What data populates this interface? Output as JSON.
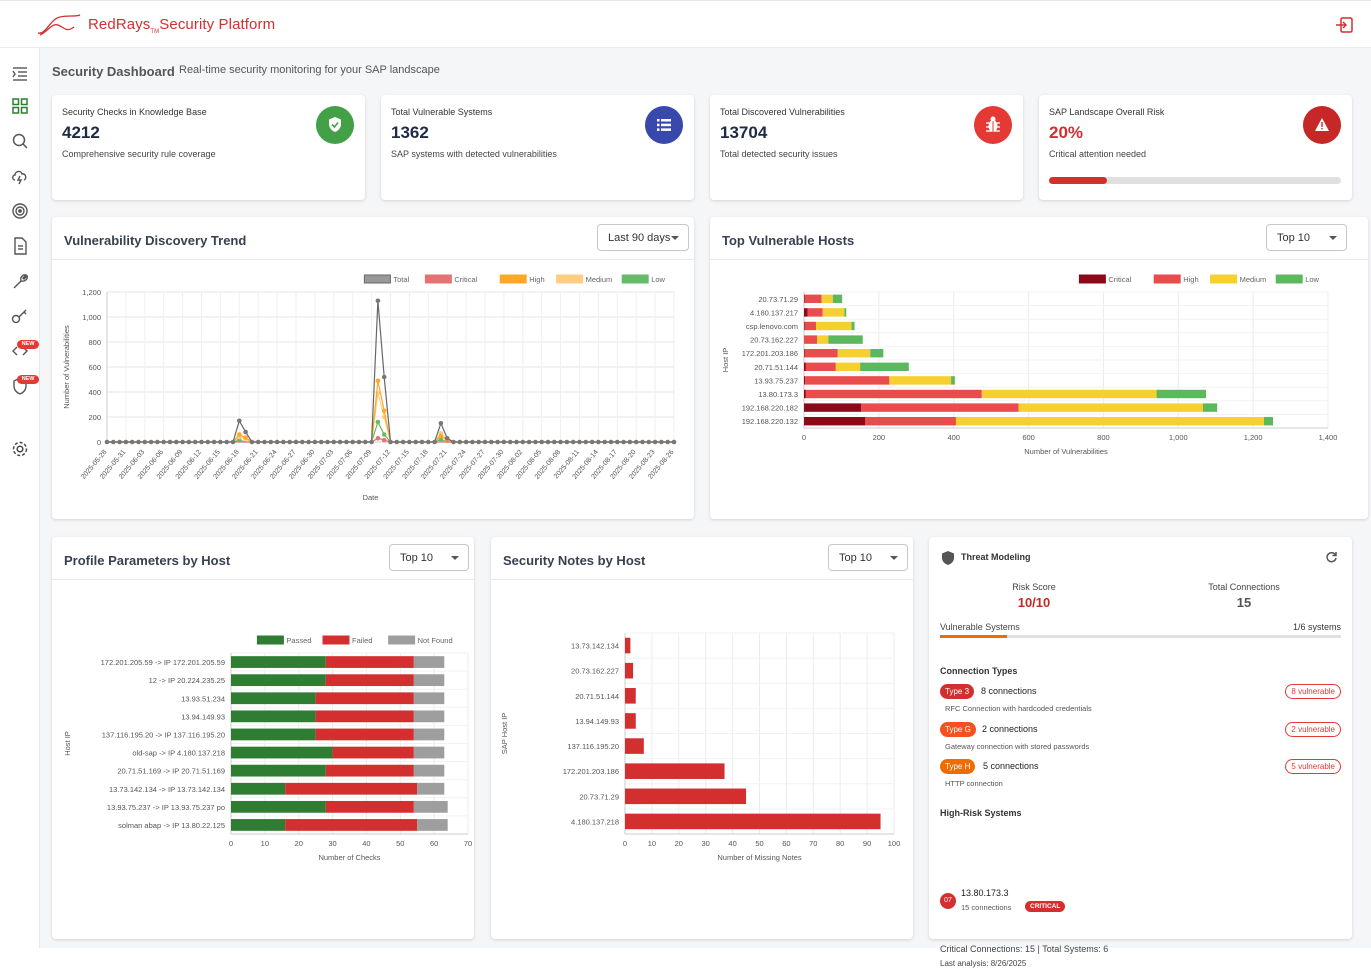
{
  "app": {
    "brand": "RedRays",
    "tm": "TM",
    "brand_suffix": "Security Platform"
  },
  "sidebar": {
    "new_badge": "NEW"
  },
  "page": {
    "title": "Security Dashboard",
    "subtitle": "Real-time security monitoring for your SAP landscape"
  },
  "stats": [
    {
      "label": "Security Checks in Knowledge Base",
      "value": "4212",
      "desc": "Comprehensive security rule coverage",
      "color": "#43a047",
      "icon": "shield-check-icon"
    },
    {
      "label": "Total Vulnerable Systems",
      "value": "1362",
      "desc": "SAP systems with detected vulnerabilities",
      "color": "#3949ab",
      "icon": "list-icon"
    },
    {
      "label": "Total Discovered Vulnerabilities",
      "value": "13704",
      "desc": "Total detected security issues",
      "color": "#e53935",
      "icon": "bug-icon"
    },
    {
      "label": "SAP Landscape Overall Risk",
      "value": "20%",
      "desc": "Critical attention needed",
      "color": "#c62828",
      "icon": "warning-icon",
      "progress": 20
    }
  ],
  "trend": {
    "title": "Vulnerability Discovery Trend",
    "filter": "Last 90 days"
  },
  "hosts": {
    "title": "Top Vulnerable Hosts",
    "filter": "Top 10"
  },
  "profile": {
    "title": "Profile Parameters by Host",
    "filter": "Top 10"
  },
  "notes": {
    "title": "Security Notes by Host",
    "filter": "Top 10"
  },
  "threat": {
    "title": "Threat Modeling",
    "risk_label": "Risk Score",
    "risk_value": "10/10",
    "conn_label": "Total Connections",
    "conn_value": "15",
    "vuln_label": "Vulnerable Systems",
    "vuln_value": "1/6 systems",
    "vuln_progress": 16.7,
    "types_title": "Connection Types",
    "types": [
      {
        "tag": "Type 3",
        "count": "8 connections",
        "desc": "RFC Connection with hardcoded credentials",
        "vuln": "8 vulnerable",
        "color": "#d32f2f"
      },
      {
        "tag": "Type G",
        "count": "2 connections",
        "desc": "Gateway connection with stored passwords",
        "vuln": "2 vulnerable",
        "color": "#f4511e"
      },
      {
        "tag": "Type H",
        "count": "5 connections",
        "desc": "HTTP connection",
        "vuln": "5 vulnerable",
        "color": "#ef6c00"
      }
    ],
    "hr_title": "High-Risk Systems",
    "hr_ip": "13.80.173.3",
    "hr_conn": "15 connections",
    "hr_badge": "CRITICAL",
    "hr_avatar": "07",
    "footer1": "Critical Connections: 15 | Total Systems: 6",
    "footer2": "Last analysis: 8/26/2025"
  },
  "chart_data": [
    {
      "type": "line",
      "title": "Vulnerability Discovery Trend",
      "xlabel": "Date",
      "ylabel": "Number of Vulnerabilities",
      "ylim": [
        0,
        1200
      ],
      "yticks": [
        "0",
        "200",
        "400",
        "600",
        "800",
        "1,000",
        "1,200"
      ],
      "x": [
        "2025-05-28",
        "2025-05-31",
        "2025-06-03",
        "2025-06-06",
        "2025-06-09",
        "2025-06-12",
        "2025-06-15",
        "2025-06-18",
        "2025-06-21",
        "2025-06-24",
        "2025-06-27",
        "2025-06-30",
        "2025-07-03",
        "2025-07-06",
        "2025-07-09",
        "2025-07-12",
        "2025-07-15",
        "2025-07-18",
        "2025-07-21",
        "2025-07-24",
        "2025-07-27",
        "2025-07-30",
        "2025-08-02",
        "2025-08-05",
        "2025-08-08",
        "2025-08-11",
        "2025-08-14",
        "2025-08-17",
        "2025-08-20",
        "2025-08-23",
        "2025-08-26"
      ],
      "legend": [
        "Total",
        "Critical",
        "High",
        "Medium",
        "Low"
      ],
      "series": [
        {
          "name": "Total",
          "color": "#666666",
          "spikes": [
            [
              21,
              170
            ],
            [
              22,
              80
            ],
            [
              43,
              1130
            ],
            [
              44,
              520
            ],
            [
              53,
              150
            ],
            [
              54,
              30
            ]
          ]
        },
        {
          "name": "Critical",
          "color": "#e57373",
          "spikes": [
            [
              43,
              30
            ],
            [
              44,
              15
            ]
          ]
        },
        {
          "name": "High",
          "color": "#ffa726",
          "spikes": [
            [
              21,
              60
            ],
            [
              22,
              35
            ],
            [
              43,
              490
            ],
            [
              44,
              250
            ],
            [
              53,
              50
            ],
            [
              54,
              10
            ]
          ]
        },
        {
          "name": "Medium",
          "color": "#ffcc80",
          "spikes": [
            [
              21,
              40
            ],
            [
              22,
              25
            ],
            [
              43,
              390
            ],
            [
              44,
              200
            ],
            [
              53,
              70
            ],
            [
              54,
              15
            ]
          ]
        },
        {
          "name": "Low",
          "color": "#66bb6a",
          "spikes": [
            [
              21,
              15
            ],
            [
              43,
              160
            ],
            [
              44,
              60
            ],
            [
              53,
              20
            ]
          ]
        }
      ],
      "points": 91
    },
    {
      "type": "bar",
      "title": "Top Vulnerable Hosts",
      "orientation": "horizontal",
      "stacked": true,
      "ylabel": "Host IP",
      "xlabel": "Number of Vulnerabilities",
      "xlim": [
        0,
        1400
      ],
      "xticks": [
        "0",
        "200",
        "400",
        "600",
        "800",
        "1,000",
        "1,200",
        "1,400"
      ],
      "categories": [
        "20.73.71.29",
        "4.180.137.217",
        "csp.lenovo.com",
        "20.73.162.227",
        "172.201.203.186",
        "20.71.51.144",
        "13.93.75.237",
        "13.80.173.3",
        "192.168.220.182",
        "192.168.220.132"
      ],
      "series": [
        {
          "name": "Critical",
          "color": "#8b0a1a",
          "values": [
            2,
            10,
            2,
            0,
            2,
            5,
            3,
            5,
            153,
            163
          ]
        },
        {
          "name": "High",
          "color": "#e84c4c",
          "values": [
            45,
            40,
            30,
            35,
            88,
            80,
            225,
            470,
            420,
            243
          ]
        },
        {
          "name": "Medium",
          "color": "#f5d02e",
          "values": [
            30,
            58,
            95,
            30,
            87,
            65,
            165,
            467,
            493,
            823
          ]
        },
        {
          "name": "Low",
          "color": "#5cb85c",
          "values": [
            25,
            5,
            8,
            92,
            35,
            130,
            10,
            132,
            38,
            24
          ]
        }
      ]
    },
    {
      "type": "bar",
      "title": "Profile Parameters by Host",
      "orientation": "horizontal",
      "stacked": true,
      "ylabel": "Host IP",
      "xlabel": "Number of Checks",
      "xlim": [
        0,
        70
      ],
      "xticks": [
        "0",
        "10",
        "20",
        "30",
        "40",
        "50",
        "60",
        "70"
      ],
      "categories": [
        "172.201.205.59 -> IP 172.201.205.59",
        "12 -> IP 20.224.235.25",
        "13.93.51.234",
        "13.94.149.93",
        "137.116.195.20 -> IP 137.116.195.20",
        "old-sap -> IP 4.180.137.218",
        "20.71.51.169 -> IP 20.71.51.169",
        "13.73.142.134 -> IP 13.73.142.134",
        "13.93.75.237 -> IP 13.93.75.237  po",
        "solman abap -> IP 13.80.22.125"
      ],
      "series": [
        {
          "name": "Passed",
          "color": "#2e7d32",
          "values": [
            28,
            28,
            25,
            25,
            25,
            30,
            28,
            16,
            28,
            16
          ]
        },
        {
          "name": "Failed",
          "color": "#d32f2f",
          "values": [
            26,
            26,
            29,
            29,
            29,
            24,
            26,
            39,
            26,
            39
          ]
        },
        {
          "name": "Not Found",
          "color": "#9e9e9e",
          "values": [
            9,
            9,
            9,
            9,
            9,
            9,
            9,
            8,
            10,
            9
          ]
        }
      ]
    },
    {
      "type": "bar",
      "title": "Security Notes by Host",
      "orientation": "horizontal",
      "ylabel": "SAP Host IP",
      "xlabel": "Number of Missing Notes",
      "xlim": [
        0,
        100
      ],
      "xticks": [
        "0",
        "10",
        "20",
        "30",
        "40",
        "50",
        "60",
        "70",
        "80",
        "90",
        "100"
      ],
      "categories": [
        "13.73.142.134",
        "20.73.162.227",
        "20.71.51.144",
        "13.94.149.93",
        "137.116.195.20",
        "172.201.203.186",
        "20.73.71.29",
        "4.180.137.218"
      ],
      "series": [
        {
          "name": "Missing Notes",
          "color": "#d32f2f",
          "values": [
            2,
            3,
            4,
            4,
            7,
            37,
            45,
            95
          ]
        }
      ]
    }
  ]
}
